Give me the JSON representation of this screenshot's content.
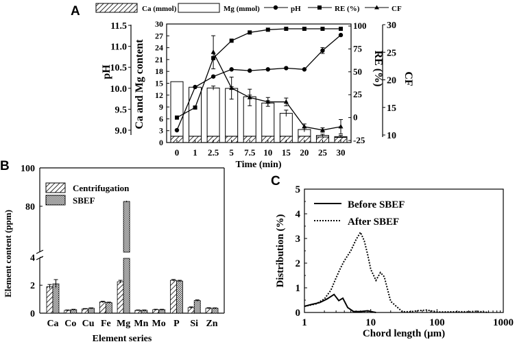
{
  "chart_data": [
    {
      "panel": "A",
      "type": "bar",
      "categories": [
        "0",
        "1",
        "2.5",
        "5",
        "7.5",
        "10",
        "15",
        "20",
        "25",
        "30"
      ],
      "xlabel": "Time (min)",
      "ylabel": "Ca and Mg content",
      "ylim": [
        0,
        30
      ],
      "yticks": [
        "0",
        "3",
        "6",
        "9",
        "12",
        "15",
        "18",
        "21",
        "24",
        "27",
        "30"
      ],
      "stacked": true,
      "series": [
        {
          "name": "Ca (mmol)",
          "values": [
            1.6,
            1.6,
            1.6,
            1.6,
            1.6,
            1.6,
            1.6,
            1.6,
            1.4,
            1.3
          ]
        },
        {
          "name": "Mg (mmol)",
          "values": [
            13.8,
            12.4,
            12.2,
            12.1,
            10.0,
            8.4,
            5.8,
            1.7,
            0.4,
            0.2
          ]
        },
        {
          "name": "pH",
          "axis": "pH",
          "ylim": [
            8.75,
            11.5
          ],
          "yticks": [
            "9.0",
            "9.5",
            "10.0",
            "10.5",
            "11.0",
            "11.5"
          ],
          "values": [
            9.0,
            10.03,
            10.28,
            10.45,
            10.42,
            10.45,
            10.48,
            10.45,
            10.9,
            11.27
          ]
        },
        {
          "name": "RE (%)",
          "axis": "RE (%)",
          "ylim": [
            -25,
            100
          ],
          "yticks": [
            "-25",
            "0",
            "25",
            "50",
            "75",
            "100"
          ],
          "values": [
            0,
            11,
            65,
            84,
            93,
            96,
            97,
            97,
            97,
            97
          ]
        },
        {
          "name": "CF",
          "axis": "CF",
          "ylim": [
            10,
            30
          ],
          "yticks": [
            "10",
            "15",
            "20",
            "25",
            "30"
          ],
          "values": [
            null,
            null,
            25,
            18.5,
            16.8,
            16,
            16,
            11.5,
            10.9,
            11.5
          ]
        }
      ]
    },
    {
      "panel": "B",
      "type": "bar",
      "categories": [
        "Ca",
        "Co",
        "Cu",
        "Fe",
        "Mg",
        "Mn",
        "Mo",
        "P",
        "Si",
        "Zn"
      ],
      "xlabel": "Element series",
      "ylabel": "Element content (ppm)",
      "yaxis_break": [
        5,
        75
      ],
      "yticks": [
        "0",
        "2",
        "4",
        "80",
        "100"
      ],
      "series": [
        {
          "name": "Centrifugation",
          "values": [
            1.9,
            0.2,
            0.3,
            0.8,
            2.25,
            0.2,
            0.25,
            2.35,
            0.4,
            0.35
          ]
        },
        {
          "name": "SBEF",
          "values": [
            2.1,
            0.25,
            0.35,
            0.75,
            82.5,
            0.2,
            0.25,
            2.3,
            0.9,
            0.35
          ]
        }
      ]
    },
    {
      "panel": "C",
      "type": "line",
      "xlabel": "Chord length (μm)",
      "ylabel": "Distribution (%)",
      "xscale": "log",
      "xlim": [
        1,
        1000
      ],
      "ylim": [
        0,
        5
      ],
      "xticks": [
        "1",
        "10",
        "100",
        "1000"
      ],
      "yticks": [
        "0",
        "1",
        "2",
        "3",
        "4",
        "5"
      ],
      "series": [
        {
          "name": "Before SBEF",
          "x": [
            1,
            1.3,
            1.7,
            2.2,
            2.8,
            3.3,
            3.8,
            4.5,
            5.5,
            7,
            9,
            11,
            12
          ],
          "values": [
            0.25,
            0.33,
            0.4,
            0.55,
            0.73,
            0.48,
            0.58,
            0.2,
            0.04,
            0.04,
            0.07,
            0.02,
            0
          ]
        },
        {
          "name": "After SBEF",
          "x": [
            1,
            1.5,
            2,
            2.5,
            3,
            3.5,
            4,
            5,
            6,
            7,
            8,
            9,
            10,
            12,
            14,
            16,
            20,
            30,
            40,
            50,
            70,
            100,
            200,
            300,
            400,
            600
          ],
          "values": [
            0.25,
            0.35,
            0.55,
            0.9,
            1.4,
            1.8,
            2.1,
            2.5,
            2.95,
            3.25,
            2.9,
            2.35,
            1.75,
            1.3,
            1.62,
            1.45,
            0.45,
            0.03,
            0.03,
            0.07,
            0.1,
            0.02,
            0.03,
            0.03,
            0.05,
            0
          ]
        }
      ]
    }
  ]
}
